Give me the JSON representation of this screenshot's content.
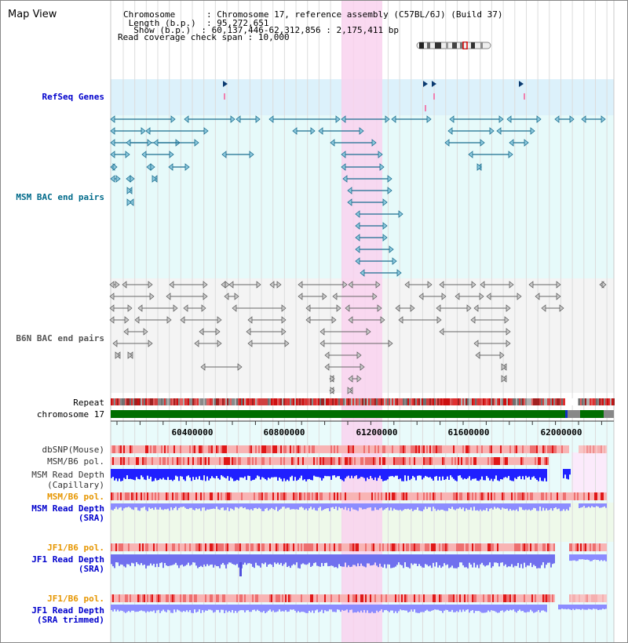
{
  "title": "Map View",
  "header": {
    "rows": [
      {
        "key": "Chromosome     ",
        "value": "Chromosome 17, reference assembly (C57BL/6J) (Build 37)"
      },
      {
        "key": " Length (b.p.) ",
        "value": "95,272,651"
      },
      {
        "key": "  Show (b.p.) ",
        "value": "60,137,446-62,312,856 : 2,175,411 bp"
      },
      {
        "key": "Read coverage check span",
        "value": "10,000"
      }
    ],
    "separator": " : "
  },
  "tracks": {
    "refseq": "RefSeq Genes",
    "msm_bac": "MSM BAC end pairs",
    "b6n_bac": "B6N BAC end pairs",
    "repeat": "Repeat",
    "chromosome": "chromosome 17",
    "dbsnp": "dbSNP(Mouse)",
    "msm_b6_pol": "MSM/B6 pol.",
    "msm_depth_cap_1": "MSM Read Depth",
    "msm_depth_cap_2": "(Capillary)",
    "msm_b6_pol_sra": "MSM/B6 pol.",
    "msm_depth_sra_1": "MSM Read Depth",
    "msm_depth_sra_2": "(SRA)",
    "jf1_pol": "JF1/B6 pol.",
    "jf1_depth_1": "JF1 Read Depth",
    "jf1_depth_2": "(SRA)",
    "jf1_pol_trim": "JF1/B6 pol.",
    "jf1_trim_1": "JF1 Read Depth",
    "jf1_trim_2": "(SRA trimmed)"
  },
  "ruler": {
    "ticks": [
      "60400000",
      "60800000",
      "61200000",
      "61600000",
      "62000000"
    ]
  },
  "colors": {
    "refseq_bg": "#dcf1fb",
    "msm_bac_bg": "#e6fafa",
    "b6n_bac_bg": "#f4f4f4",
    "highlight": "#f9d2ee",
    "msm_line": "#1a6d8f",
    "b6n_line": "#666666",
    "chrom_green": "#006e00",
    "depth_blue": "#2020ff",
    "depth_light": "#8c8cff",
    "label_blue": "#0000cc",
    "label_teal": "#006a8a",
    "label_orange": "#e69600"
  }
}
